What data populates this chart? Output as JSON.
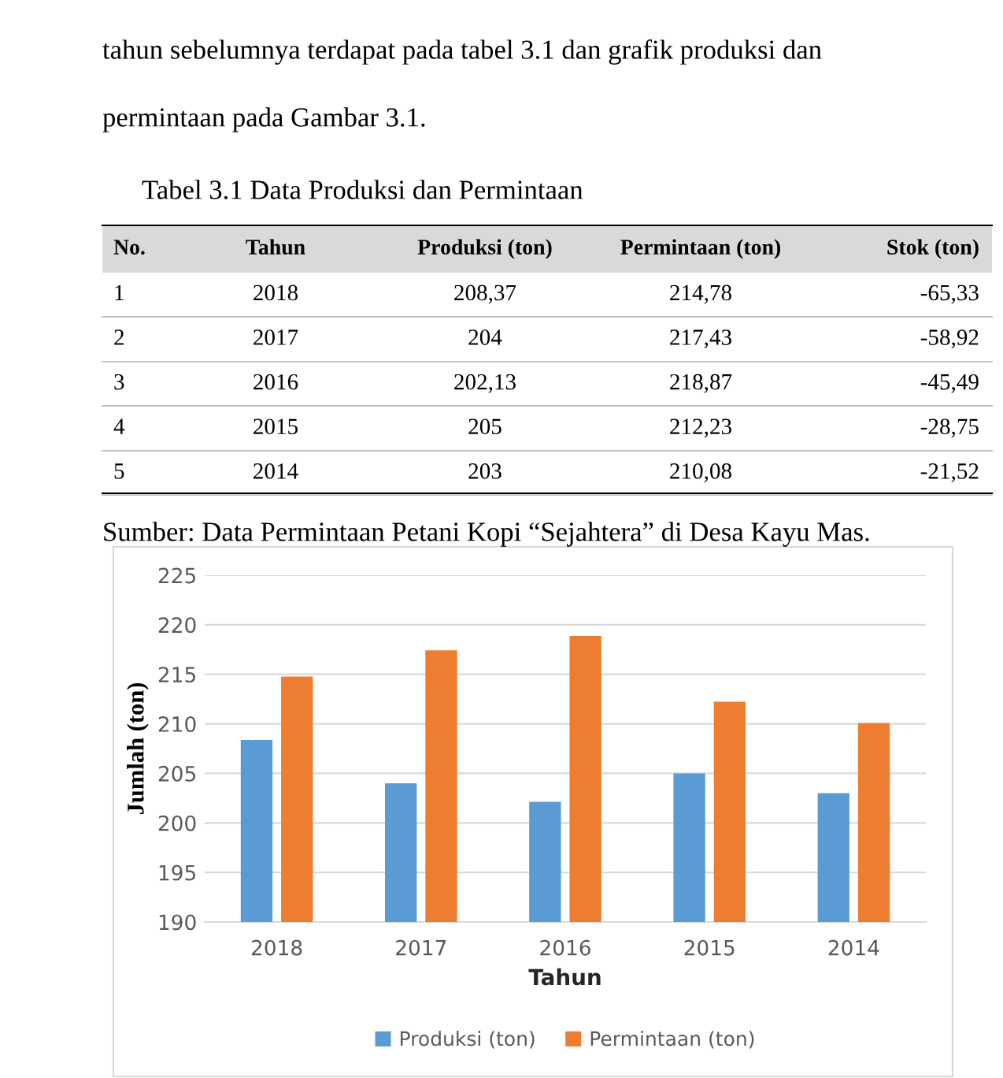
{
  "chart_data": {
    "type": "bar",
    "xlabel": "Tahun",
    "ylabel": "Jumlah (ton)",
    "categories": [
      "2018",
      "2017",
      "2016",
      "2015",
      "2014"
    ],
    "series": [
      {
        "name": "Produksi (ton)",
        "color": "#5b9bd5",
        "values": [
          208.37,
          204,
          202.13,
          205,
          203
        ]
      },
      {
        "name": "Permintaan (ton)",
        "color": "#ed7d31",
        "values": [
          214.78,
          217.43,
          218.87,
          212.23,
          210.08
        ]
      }
    ],
    "ylim": [
      190,
      225
    ],
    "yticks": [
      190,
      195,
      200,
      205,
      210,
      215,
      220,
      225
    ],
    "grid": "y",
    "legend": "bottom",
    "annotations": [
      "tahun sebelumnya terdapat pada tabel 3.1 dan grafik produksi dan",
      "permintaan pada Gambar 3.1.",
      "Tabel 3.1 Data Produksi dan Permintaan",
      "No.",
      "Tahun",
      "Produksi (ton)",
      "Permintaan (ton)",
      "Stok (ton)",
      "1",
      "2018",
      "208,37",
      "214,78",
      "-65,33",
      "2",
      "2017",
      "204",
      "217,43",
      "-58,92",
      "3",
      "2016",
      "202,13",
      "218,87",
      "-45,49",
      "4",
      "2015",
      "205",
      "212,23",
      "-28,75",
      "5",
      "2014",
      "203",
      "210,08",
      "-21,52",
      "Sumber: Data Permintaan Petani Kopi “Sejahtera” di Desa Kayu Mas."
    ]
  }
}
